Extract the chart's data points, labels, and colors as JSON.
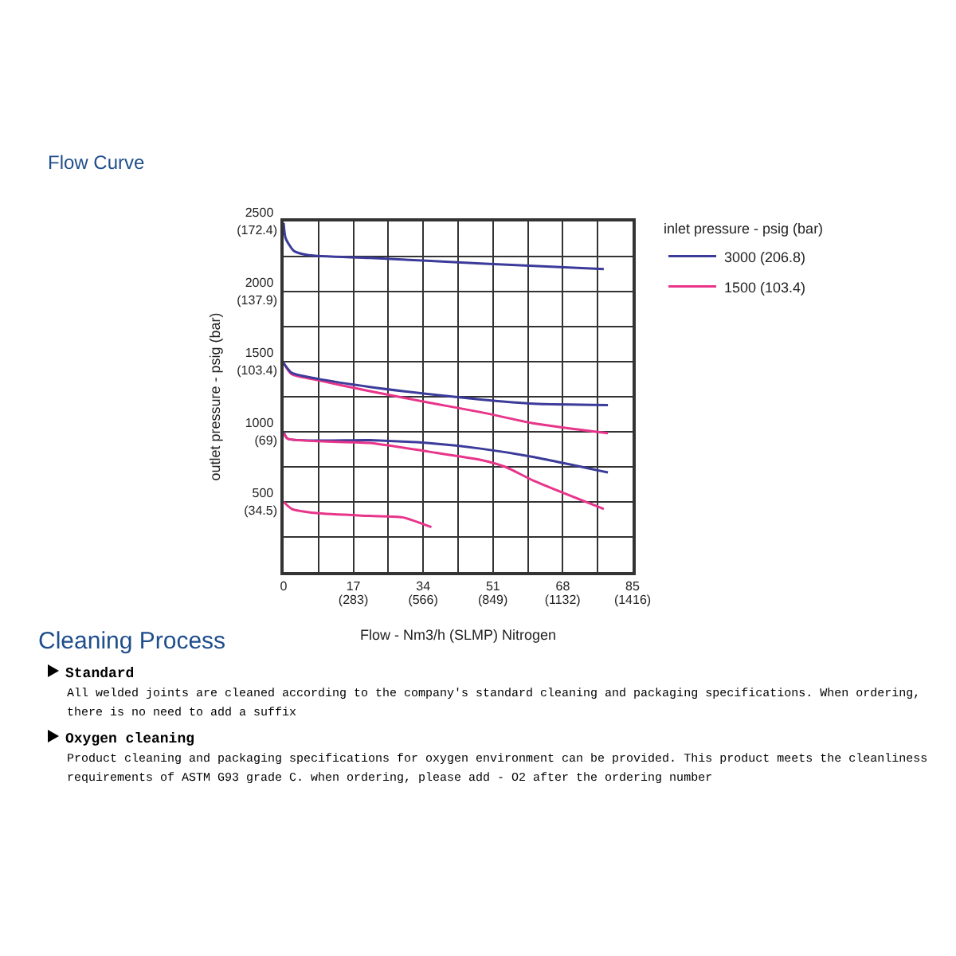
{
  "chart_data": {
    "type": "line",
    "title": "Flow Curve",
    "xlabel": "Flow - Nm3/h (SLMP) Nitrogen",
    "y2label": "outlet pressure - psig (bar)",
    "legend_title": "inlet pressure - psig (bar)",
    "xlim": [
      0,
      85
    ],
    "ylim": [
      0,
      2500
    ],
    "xticks": [
      0,
      17,
      34,
      51,
      68,
      85
    ],
    "x2lim": [
      0,
      1416
    ],
    "x2ticks": [
      {
        "value": 283,
        "label": "(283)"
      },
      {
        "value": 566,
        "label": "(566)"
      },
      {
        "value": 849,
        "label": "(849)"
      },
      {
        "value": 1132,
        "label": "(1132)"
      },
      {
        "value": 1416,
        "label": "(1416)"
      }
    ],
    "yticks": [
      500,
      1000,
      1500,
      2000,
      2500
    ],
    "y2lim": [
      0,
      172.4
    ],
    "y2ticks": [
      {
        "value": 34.5,
        "label": "(34.5)"
      },
      {
        "value": 69,
        "label": "(69)"
      },
      {
        "value": 103.4,
        "label": "(103.4)"
      },
      {
        "value": 137.9,
        "label": "(137.9)"
      },
      {
        "value": 172.4,
        "label": "(172.4)"
      }
    ],
    "grid": true,
    "legend": "right",
    "line_style": "solid",
    "series": [
      {
        "name": "3000 (206.8)",
        "color": "#3b3b9a",
        "x": [
          0,
          0.5,
          2.5,
          6,
          21,
          48,
          78
        ],
        "values": [
          2490,
          2380,
          2290,
          2260,
          2240,
          2200,
          2160
        ]
      },
      {
        "name": "1500 (103.4)",
        "color": "#e8358a",
        "x": [
          0,
          2,
          8,
          21,
          35,
          48,
          61,
          79
        ],
        "values": [
          1490,
          1410,
          1370,
          1290,
          1210,
          1140,
          1060,
          990
        ]
      },
      {
        "color": "#3b3b9a",
        "x": [
          0,
          2,
          8,
          21,
          35,
          48,
          61,
          79
        ],
        "values": [
          1490,
          1420,
          1380,
          1320,
          1270,
          1230,
          1200,
          1190
        ]
      },
      {
        "color": "#3b3b9a",
        "x": [
          0,
          1,
          21,
          35,
          48,
          61,
          79
        ],
        "values": [
          1000,
          950,
          940,
          920,
          880,
          820,
          710
        ]
      },
      {
        "color": "#e8358a",
        "x": [
          0,
          1,
          21,
          35,
          48,
          54,
          61,
          78
        ],
        "values": [
          990,
          950,
          920,
          860,
          800,
          750,
          650,
          450
        ]
      },
      {
        "color": "#e8358a",
        "x": [
          0,
          2,
          8,
          21,
          29,
          36
        ],
        "values": [
          500,
          450,
          420,
          400,
          390,
          320
        ]
      }
    ],
    "annotations": [
      "Cleaning Process",
      "Standard",
      "All welded joints are cleaned according to the company's standard cleaning and packaging specifications. When ordering, there is no need to add a suffix",
      "Oxygen cleaning",
      "Product cleaning and packaging specifications for oxygen environment can be provided. This product meets the cleanliness requirements of ASTM G93 grade C. when ordering, please add - O2 after the ordering number"
    ]
  }
}
